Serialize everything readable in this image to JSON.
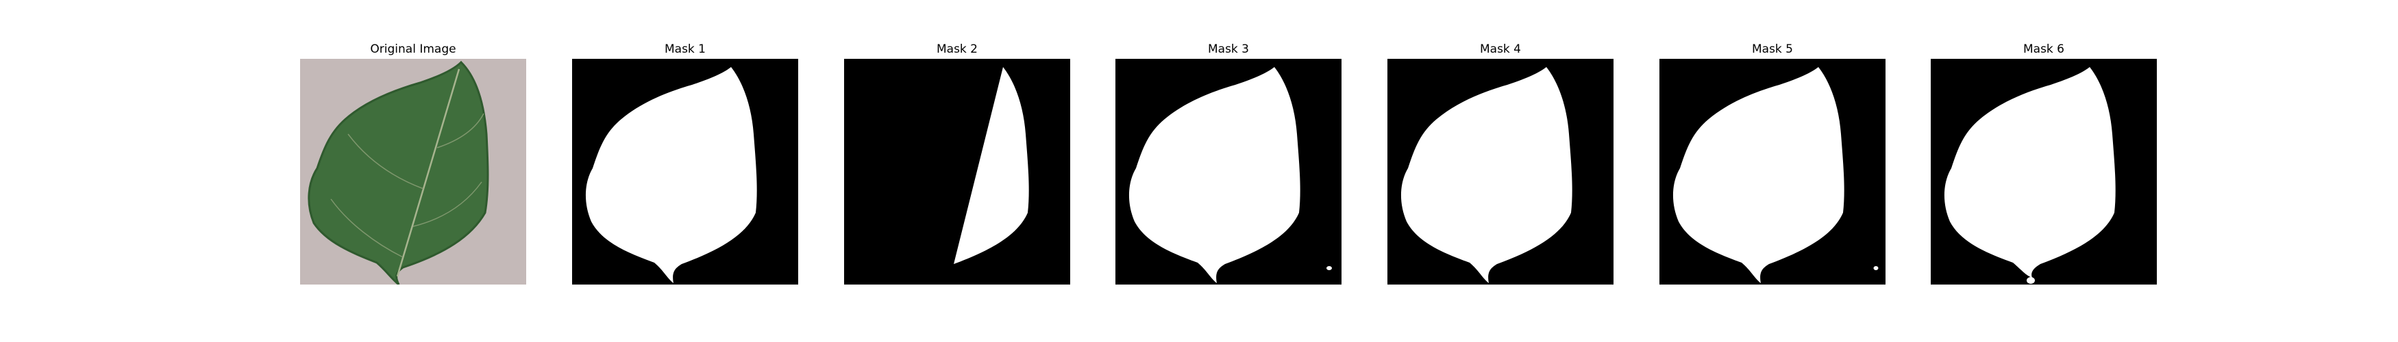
{
  "figure": {
    "panels": [
      {
        "title": "Original Image",
        "kind": "photo"
      },
      {
        "title": "Mask 1",
        "kind": "mask"
      },
      {
        "title": "Mask 2",
        "kind": "mask"
      },
      {
        "title": "Mask 3",
        "kind": "mask",
        "speck": "bottom-right"
      },
      {
        "title": "Mask 4",
        "kind": "mask"
      },
      {
        "title": "Mask 5",
        "kind": "mask",
        "speck": "bottom-right"
      },
      {
        "title": "Mask 6",
        "kind": "mask",
        "speck": "bottom-center"
      }
    ],
    "colors": {
      "mask_background": "#000000",
      "mask_foreground": "#ffffff",
      "photo_background": "#c9bcbb",
      "leaf": "#3f6e3c",
      "leaf_dark": "#2f5a2e",
      "vein": "#a7b48f"
    }
  }
}
